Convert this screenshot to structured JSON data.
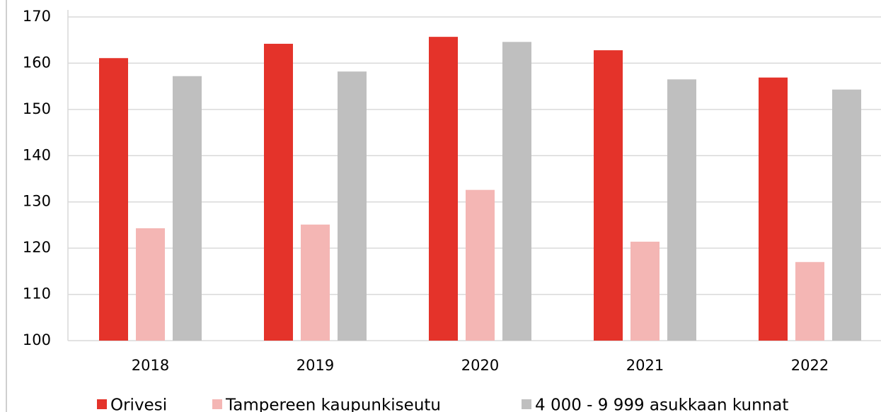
{
  "chart_data": {
    "type": "bar",
    "categories": [
      "2018",
      "2019",
      "2020",
      "2021",
      "2022"
    ],
    "series": [
      {
        "name": "Orivesi",
        "color": "#e4332a",
        "values": [
          161.1,
          164.2,
          165.7,
          162.8,
          156.9
        ]
      },
      {
        "name": "Tampereen kaupunkiseutu",
        "color": "#f4b6b4",
        "values": [
          124.3,
          125.1,
          132.6,
          121.4,
          117.0
        ]
      },
      {
        "name": "4 000 - 9 999 asukkaan kunnat",
        "color": "#bfbfbf",
        "values": [
          157.2,
          158.2,
          164.6,
          156.5,
          154.3
        ]
      }
    ],
    "ylim": [
      100,
      170
    ],
    "yticks": [
      100,
      110,
      120,
      130,
      140,
      150,
      160,
      170
    ],
    "grid": true,
    "legend": "bottom"
  }
}
